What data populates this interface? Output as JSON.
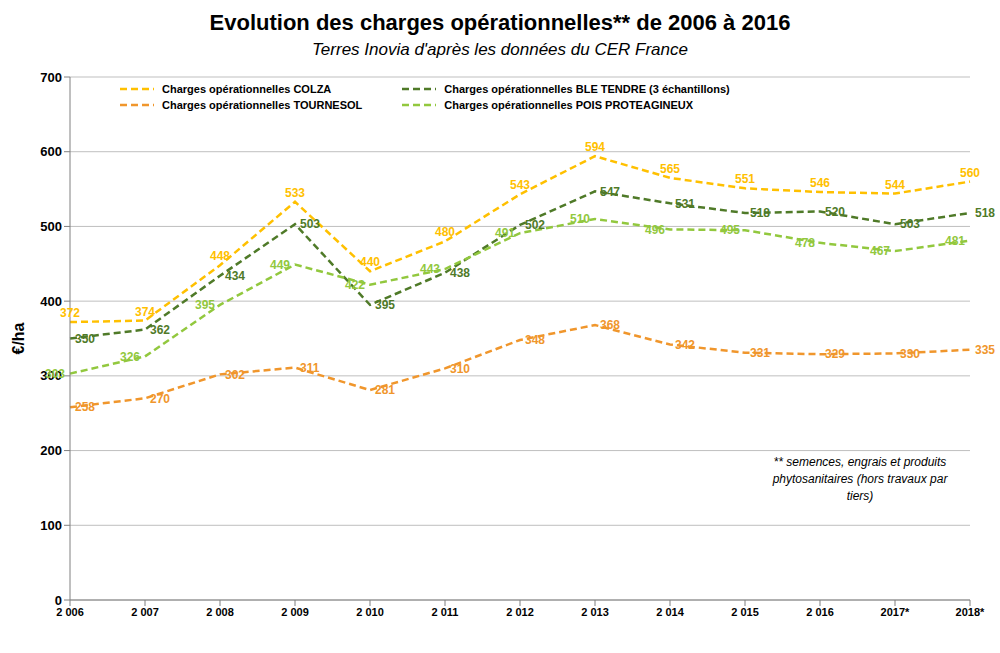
{
  "chart_data": {
    "type": "line",
    "title": "Evolution des charges opérationnelles**  de 2006 à 2016",
    "subtitle": "Terres Inovia d'après les données du CER France",
    "ylabel": "€/ha",
    "note": "** semences, engrais et produits phytosanitaires (hors travaux par tiers)",
    "categories": [
      "2 006",
      "2 007",
      "2 008",
      "2 009",
      "2 010",
      "2 011",
      "2 012",
      "2 013",
      "2 014",
      "2 015",
      "2 016",
      "2017*",
      "2018*"
    ],
    "series": [
      {
        "name": "Charges opérationnelles COLZA",
        "color": "#ffc000",
        "values": [
          372,
          374,
          448,
          533,
          440,
          480,
          543,
          594,
          565,
          551,
          546,
          544,
          560
        ]
      },
      {
        "name": "Charges opérationnelles BLE TENDRE (3 échantillons)",
        "color": "#4f7a28",
        "values": [
          350,
          362,
          434,
          503,
          395,
          438,
          502,
          547,
          531,
          518,
          520,
          503,
          518
        ]
      },
      {
        "name": "Charges opérationnelles TOURNESOL",
        "color": "#f0962c",
        "values": [
          258,
          270,
          302,
          311,
          281,
          310,
          348,
          368,
          342,
          331,
          329,
          330,
          335
        ]
      },
      {
        "name": "Charges opérationnelles POIS PROTEAGINEUX",
        "color": "#92c83e",
        "values": [
          303,
          326,
          395,
          449,
          422,
          443,
          491,
          510,
          496,
          495,
          478,
          467,
          481
        ]
      }
    ],
    "ylim": [
      0,
      700
    ],
    "yticks": [
      0,
      100,
      200,
      300,
      400,
      500,
      600,
      700
    ],
    "grid": true,
    "legend": "upper left",
    "line_style": "dashed",
    "data_labels": true
  }
}
